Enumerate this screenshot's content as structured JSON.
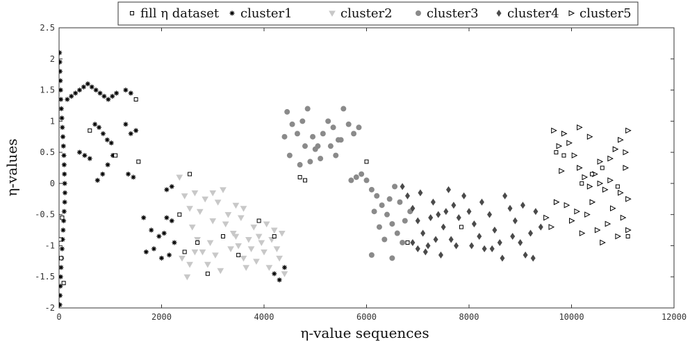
{
  "chart_data": {
    "type": "scatter",
    "title": "",
    "xlabel": "η-value sequences",
    "ylabel": "η-values",
    "xlim": [
      0,
      12000
    ],
    "ylim": [
      -2,
      2.5
    ],
    "xticks": [
      "0",
      "2000",
      "4000",
      "6000",
      "8000",
      "10000",
      "12000"
    ],
    "xtick_values": [
      0,
      2000,
      4000,
      6000,
      8000,
      10000,
      12000
    ],
    "yticks": [
      "2.5",
      "2",
      "1.5",
      "1",
      "0.5",
      "0",
      "-0.5",
      "-1",
      "-1.5",
      "-2"
    ],
    "ytick_values": [
      2.5,
      2,
      1.5,
      1,
      0.5,
      0,
      -0.5,
      -1,
      -1.5,
      -2
    ],
    "grid": false,
    "legend_position": "top",
    "series": [
      {
        "name": "fill η dataset",
        "marker": "square-open",
        "color": "#000000",
        "points": [
          [
            20,
            -0.9
          ],
          [
            40,
            -1.2
          ],
          [
            60,
            -0.55
          ],
          [
            90,
            -1.6
          ],
          [
            600,
            0.85
          ],
          [
            1100,
            0.45
          ],
          [
            1500,
            1.35
          ],
          [
            1550,
            0.35
          ],
          [
            2350,
            -0.5
          ],
          [
            2450,
            -1.1
          ],
          [
            2550,
            0.15
          ],
          [
            2700,
            -0.95
          ],
          [
            2900,
            -1.45
          ],
          [
            3200,
            -0.85
          ],
          [
            3500,
            -1.15
          ],
          [
            3900,
            -0.6
          ],
          [
            4200,
            -0.85
          ],
          [
            4700,
            0.1
          ],
          [
            4800,
            0.05
          ],
          [
            6000,
            0.35
          ],
          [
            6800,
            -0.95
          ],
          [
            7850,
            -0.7
          ],
          [
            9700,
            0.5
          ],
          [
            9850,
            0.45
          ],
          [
            10200,
            0.0
          ],
          [
            10400,
            0.15
          ],
          [
            10600,
            0.25
          ],
          [
            10900,
            -0.05
          ],
          [
            11100,
            -0.85
          ]
        ]
      },
      {
        "name": "cluster1",
        "marker": "asterisk",
        "color": "#000000",
        "points": [
          [
            10,
            2.1
          ],
          [
            15,
            1.95
          ],
          [
            20,
            1.8
          ],
          [
            25,
            1.65
          ],
          [
            30,
            1.5
          ],
          [
            35,
            1.35
          ],
          [
            45,
            1.2
          ],
          [
            55,
            1.05
          ],
          [
            65,
            0.9
          ],
          [
            75,
            0.75
          ],
          [
            85,
            0.6
          ],
          [
            95,
            0.45
          ],
          [
            100,
            0.3
          ],
          [
            105,
            0.15
          ],
          [
            110,
            0.0
          ],
          [
            115,
            -0.15
          ],
          [
            110,
            -0.3
          ],
          [
            100,
            -0.45
          ],
          [
            90,
            -0.6
          ],
          [
            80,
            -0.75
          ],
          [
            70,
            -0.9
          ],
          [
            60,
            -1.05
          ],
          [
            50,
            -1.2
          ],
          [
            40,
            -1.35
          ],
          [
            30,
            -1.5
          ],
          [
            25,
            -1.65
          ],
          [
            20,
            -1.8
          ],
          [
            15,
            -1.95
          ],
          [
            160,
            1.35
          ],
          [
            240,
            1.4
          ],
          [
            320,
            1.45
          ],
          [
            400,
            1.5
          ],
          [
            480,
            1.55
          ],
          [
            560,
            1.6
          ],
          [
            640,
            1.55
          ],
          [
            720,
            1.5
          ],
          [
            800,
            1.45
          ],
          [
            880,
            1.4
          ],
          [
            960,
            1.35
          ],
          [
            1040,
            1.4
          ],
          [
            1120,
            1.45
          ],
          [
            1300,
            1.5
          ],
          [
            1400,
            1.45
          ],
          [
            700,
            0.95
          ],
          [
            780,
            0.9
          ],
          [
            860,
            0.8
          ],
          [
            940,
            0.7
          ],
          [
            1020,
            0.65
          ],
          [
            1300,
            0.95
          ],
          [
            1400,
            0.8
          ],
          [
            1500,
            0.85
          ],
          [
            400,
            0.5
          ],
          [
            500,
            0.45
          ],
          [
            600,
            0.4
          ],
          [
            750,
            0.05
          ],
          [
            850,
            0.15
          ],
          [
            950,
            0.3
          ],
          [
            1050,
            0.45
          ],
          [
            1350,
            0.15
          ],
          [
            1450,
            0.1
          ],
          [
            1650,
            -0.55
          ],
          [
            1800,
            -0.75
          ],
          [
            1950,
            -0.85
          ],
          [
            2100,
            -0.55
          ],
          [
            2200,
            -0.6
          ],
          [
            1700,
            -1.1
          ],
          [
            1850,
            -1.05
          ],
          [
            2000,
            -1.2
          ],
          [
            2150,
            -1.15
          ],
          [
            2250,
            -0.95
          ],
          [
            2050,
            -0.8
          ],
          [
            4200,
            -1.45
          ],
          [
            4300,
            -1.55
          ],
          [
            4400,
            -1.35
          ],
          [
            2100,
            -0.1
          ],
          [
            2200,
            -0.05
          ]
        ]
      },
      {
        "name": "cluster2",
        "marker": "triangle-down",
        "color": "#c8c8c8",
        "points": [
          [
            2350,
            0.1
          ],
          [
            2450,
            -0.2
          ],
          [
            2550,
            -0.4
          ],
          [
            2600,
            -0.7
          ],
          [
            2700,
            -0.9
          ],
          [
            2800,
            -1.1
          ],
          [
            2900,
            -1.3
          ],
          [
            3000,
            -0.6
          ],
          [
            3100,
            -0.3
          ],
          [
            3200,
            -0.1
          ],
          [
            3300,
            -0.5
          ],
          [
            3400,
            -0.8
          ],
          [
            3500,
            -1.0
          ],
          [
            3600,
            -1.2
          ],
          [
            3700,
            -0.9
          ],
          [
            3800,
            -0.7
          ],
          [
            3900,
            -0.85
          ],
          [
            4000,
            -1.1
          ],
          [
            4100,
            -1.35
          ],
          [
            4200,
            -0.75
          ],
          [
            4300,
            -1.2
          ],
          [
            4400,
            -1.45
          ],
          [
            2400,
            -1.2
          ],
          [
            2500,
            -1.5
          ],
          [
            2650,
            -0.15
          ],
          [
            2750,
            -0.45
          ],
          [
            2850,
            -0.25
          ],
          [
            2950,
            -0.95
          ],
          [
            3050,
            -1.15
          ],
          [
            3150,
            -1.4
          ],
          [
            3250,
            -0.65
          ],
          [
            3350,
            -1.05
          ],
          [
            3450,
            -0.35
          ],
          [
            3550,
            -0.55
          ],
          [
            3650,
            -1.35
          ],
          [
            3750,
            -1.05
          ],
          [
            3850,
            -1.25
          ],
          [
            3950,
            -0.95
          ],
          [
            4050,
            -0.65
          ],
          [
            4150,
            -0.9
          ],
          [
            4250,
            -1.05
          ],
          [
            4350,
            -0.8
          ],
          [
            2550,
            -1.3
          ],
          [
            2650,
            -1.1
          ],
          [
            3450,
            -0.85
          ],
          [
            3000,
            -0.15
          ],
          [
            3600,
            -0.4
          ]
        ]
      },
      {
        "name": "cluster3",
        "marker": "circle",
        "color": "#8a8a8a",
        "points": [
          [
            4450,
            1.15
          ],
          [
            4550,
            0.95
          ],
          [
            4650,
            0.8
          ],
          [
            4750,
            1.0
          ],
          [
            4850,
            1.2
          ],
          [
            4950,
            0.75
          ],
          [
            5050,
            0.6
          ],
          [
            5150,
            0.8
          ],
          [
            5250,
            1.0
          ],
          [
            5350,
            0.9
          ],
          [
            5450,
            0.7
          ],
          [
            5550,
            1.2
          ],
          [
            5650,
            0.95
          ],
          [
            5750,
            0.8
          ],
          [
            5850,
            0.9
          ],
          [
            4400,
            0.75
          ],
          [
            4500,
            0.45
          ],
          [
            4700,
            0.3
          ],
          [
            4800,
            0.6
          ],
          [
            4900,
            0.35
          ],
          [
            5000,
            0.55
          ],
          [
            5100,
            0.4
          ],
          [
            5300,
            0.6
          ],
          [
            5400,
            0.45
          ],
          [
            5500,
            0.7
          ],
          [
            5900,
            0.15
          ],
          [
            6000,
            0.05
          ],
          [
            6100,
            -0.1
          ],
          [
            6200,
            -0.2
          ],
          [
            6300,
            -0.35
          ],
          [
            6400,
            -0.5
          ],
          [
            6500,
            -0.65
          ],
          [
            6600,
            -0.8
          ],
          [
            6700,
            -0.95
          ],
          [
            6150,
            -0.45
          ],
          [
            6250,
            -0.7
          ],
          [
            6350,
            -0.9
          ],
          [
            6450,
            -0.25
          ],
          [
            6550,
            -0.05
          ],
          [
            6650,
            -0.3
          ],
          [
            6750,
            -0.6
          ],
          [
            6850,
            -0.45
          ],
          [
            6100,
            -1.15
          ],
          [
            6500,
            -1.2
          ],
          [
            5700,
            0.05
          ],
          [
            5800,
            0.1
          ]
        ]
      },
      {
        "name": "cluster4",
        "marker": "diamond",
        "color": "#4a4a4a",
        "points": [
          [
            6800,
            -0.2
          ],
          [
            6900,
            -0.4
          ],
          [
            7000,
            -0.6
          ],
          [
            7100,
            -0.8
          ],
          [
            7200,
            -1.0
          ],
          [
            7300,
            -0.3
          ],
          [
            7400,
            -0.5
          ],
          [
            7500,
            -0.7
          ],
          [
            7600,
            -0.1
          ],
          [
            7700,
            -0.35
          ],
          [
            7800,
            -0.55
          ],
          [
            7900,
            -0.2
          ],
          [
            8000,
            -0.45
          ],
          [
            8100,
            -0.65
          ],
          [
            8200,
            -0.85
          ],
          [
            8300,
            -1.05
          ],
          [
            8400,
            -0.5
          ],
          [
            8500,
            -0.75
          ],
          [
            8600,
            -0.95
          ],
          [
            8700,
            -0.2
          ],
          [
            8800,
            -0.4
          ],
          [
            8900,
            -0.6
          ],
          [
            9000,
            -0.95
          ],
          [
            9100,
            -1.15
          ],
          [
            9200,
            -0.8
          ],
          [
            9300,
            -0.45
          ],
          [
            9400,
            -0.7
          ],
          [
            6900,
            -0.95
          ],
          [
            7050,
            -0.15
          ],
          [
            7150,
            -1.1
          ],
          [
            7250,
            -0.55
          ],
          [
            7350,
            -0.9
          ],
          [
            7450,
            -1.15
          ],
          [
            7550,
            -0.45
          ],
          [
            7650,
            -0.9
          ],
          [
            7750,
            -1.0
          ],
          [
            8050,
            -1.0
          ],
          [
            8250,
            -0.3
          ],
          [
            8450,
            -1.05
          ],
          [
            8650,
            -1.2
          ],
          [
            8850,
            -0.85
          ],
          [
            9050,
            -0.35
          ],
          [
            9250,
            -1.2
          ],
          [
            7000,
            -1.05
          ],
          [
            6700,
            -0.05
          ]
        ]
      },
      {
        "name": "cluster5",
        "marker": "triangle-right",
        "color": "#000000",
        "points": [
          [
            9650,
            0.85
          ],
          [
            9750,
            0.6
          ],
          [
            9850,
            0.8
          ],
          [
            9950,
            0.65
          ],
          [
            10050,
            0.45
          ],
          [
            10150,
            0.25
          ],
          [
            10250,
            0.1
          ],
          [
            10350,
            -0.05
          ],
          [
            10450,
            0.15
          ],
          [
            10550,
            0.0
          ],
          [
            10650,
            -0.1
          ],
          [
            10750,
            0.4
          ],
          [
            10850,
            0.55
          ],
          [
            10950,
            0.7
          ],
          [
            11050,
            0.5
          ],
          [
            11100,
            0.85
          ],
          [
            9800,
            0.2
          ],
          [
            9900,
            -0.35
          ],
          [
            10000,
            -0.6
          ],
          [
            10100,
            -0.45
          ],
          [
            10200,
            -0.8
          ],
          [
            10300,
            -0.5
          ],
          [
            10400,
            -0.3
          ],
          [
            10500,
            -0.75
          ],
          [
            10600,
            -0.95
          ],
          [
            10700,
            -0.65
          ],
          [
            10800,
            -0.4
          ],
          [
            10900,
            -0.85
          ],
          [
            11000,
            -0.55
          ],
          [
            11100,
            -0.25
          ],
          [
            9700,
            -0.3
          ],
          [
            9600,
            -0.7
          ],
          [
            9500,
            -0.55
          ],
          [
            10150,
            0.9
          ],
          [
            10350,
            0.75
          ],
          [
            10550,
            0.35
          ],
          [
            10750,
            0.05
          ],
          [
            10950,
            -0.15
          ],
          [
            11050,
            0.25
          ],
          [
            11100,
            -0.75
          ]
        ]
      }
    ]
  }
}
